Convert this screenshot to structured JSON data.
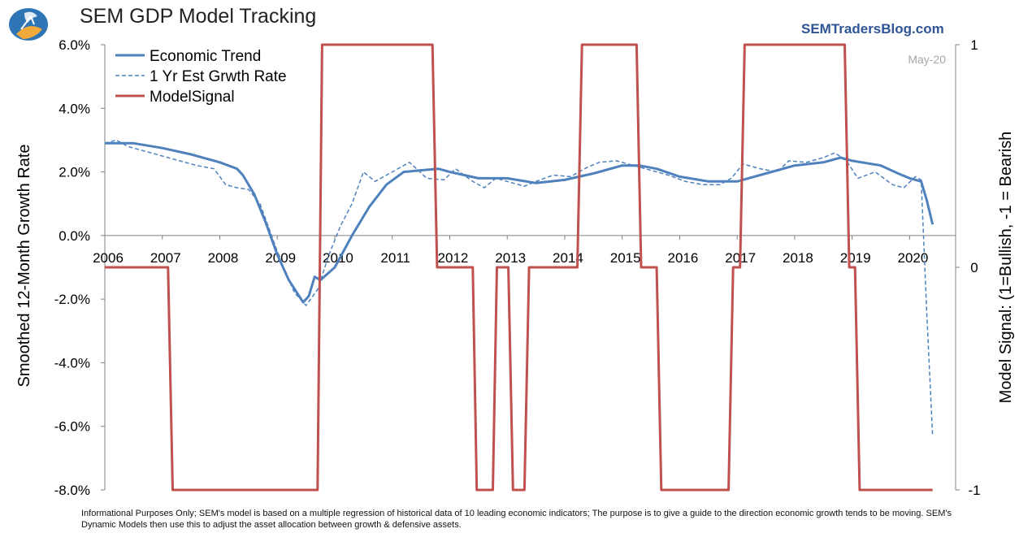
{
  "header": {
    "title": "SEM GDP Model Tracking",
    "brand": "SEMTradersBlog.com",
    "logo_icon": "sem-globe-logo-icon"
  },
  "footnote": "Informational Purposes Only; SEM's model is based on a multiple regression of historical data of 10 leading economic indicators; The purpose is to give a guide to the direction economic growth tends to be moving. SEM's Dynamic Models then use this to adjust the asset allocation between growth & defensive assets.",
  "chart_data": {
    "type": "line",
    "title": "SEM GDP Model Tracking",
    "ylabel": "Smoothed 12-Month Growth Rate",
    "y2label": "Model Signal: (1=Bullish, -1 = Bearish",
    "annotation": "May-20",
    "ylim": [
      -8,
      6
    ],
    "y2lim": [
      -1,
      1
    ],
    "xlim": [
      2006,
      2020.8
    ],
    "yticks": [
      "6.0%",
      "4.0%",
      "2.0%",
      "0.0%",
      "-2.0%",
      "-4.0%",
      "-6.0%",
      "-8.0%"
    ],
    "ytick_values": [
      6,
      4,
      2,
      0,
      -2,
      -4,
      -6,
      -8
    ],
    "y2ticks": [
      "1",
      "0",
      "-1"
    ],
    "y2tick_values": [
      1,
      0,
      -1
    ],
    "xticks": [
      "2006",
      "2007",
      "2008",
      "2009",
      "2010",
      "2011",
      "2012",
      "2013",
      "2014",
      "2015",
      "2016",
      "2017",
      "2018",
      "2019",
      "2020"
    ],
    "xtick_values": [
      2006,
      2007,
      2008,
      2009,
      2010,
      2011,
      2012,
      2013,
      2014,
      2015,
      2016,
      2017,
      2018,
      2019,
      2020
    ],
    "legend_position": "top-left",
    "grid": false,
    "series": [
      {
        "name": "Economic Trend",
        "color": "#4f81bd",
        "style": "solid",
        "axis": "left",
        "x": [
          2006,
          2006.5,
          2007,
          2007.5,
          2008,
          2008.3,
          2008.4,
          2008.6,
          2008.8,
          2009,
          2009.2,
          2009.45,
          2009.55,
          2009.65,
          2009.75,
          2010,
          2010.3,
          2010.6,
          2010.9,
          2011.2,
          2011.5,
          2011.8,
          2012,
          2012.5,
          2013,
          2013.5,
          2014,
          2014.5,
          2015,
          2015.3,
          2015.6,
          2016,
          2016.5,
          2017,
          2017.5,
          2018,
          2018.5,
          2018.8,
          2019,
          2019.5,
          2019.8,
          2020,
          2020.2,
          2020.3,
          2020.4
        ],
        "values": [
          2.9,
          2.9,
          2.75,
          2.55,
          2.3,
          2.1,
          1.9,
          1.3,
          0.4,
          -0.6,
          -1.4,
          -2.1,
          -1.9,
          -1.3,
          -1.4,
          -1.0,
          0.0,
          0.9,
          1.6,
          2.0,
          2.05,
          2.1,
          2.0,
          1.8,
          1.8,
          1.65,
          1.75,
          1.95,
          2.2,
          2.2,
          2.1,
          1.85,
          1.7,
          1.7,
          1.95,
          2.2,
          2.3,
          2.45,
          2.35,
          2.2,
          1.95,
          1.8,
          1.7,
          1.1,
          0.35
        ]
      },
      {
        "name": "1 Yr Est Grwth Rate",
        "color": "#4f81bd",
        "style": "dashed",
        "axis": "left",
        "x": [
          2006,
          2006.2,
          2006.4,
          2006.7,
          2007,
          2007.3,
          2007.6,
          2007.9,
          2008.1,
          2008.3,
          2008.5,
          2008.7,
          2008.9,
          2009.1,
          2009.3,
          2009.5,
          2009.7,
          2009.9,
          2010.1,
          2010.3,
          2010.5,
          2010.7,
          2011,
          2011.3,
          2011.6,
          2011.9,
          2012.1,
          2012.4,
          2012.6,
          2012.8,
          2013,
          2013.3,
          2013.5,
          2013.8,
          2014.1,
          2014.4,
          2014.6,
          2014.9,
          2015.2,
          2015.5,
          2015.8,
          2016.1,
          2016.4,
          2016.7,
          2016.9,
          2017.1,
          2017.4,
          2017.7,
          2017.9,
          2018.2,
          2018.5,
          2018.7,
          2018.9,
          2019.1,
          2019.4,
          2019.7,
          2019.9,
          2020.1,
          2020.2,
          2020.3,
          2020.4
        ],
        "values": [
          2.9,
          3.0,
          2.8,
          2.65,
          2.5,
          2.35,
          2.2,
          2.1,
          1.6,
          1.5,
          1.45,
          1.0,
          0.0,
          -1.0,
          -1.8,
          -2.2,
          -1.7,
          -0.6,
          0.3,
          1.0,
          2.0,
          1.7,
          2.0,
          2.3,
          1.8,
          1.75,
          2.1,
          1.7,
          1.5,
          1.8,
          1.7,
          1.55,
          1.7,
          1.9,
          1.85,
          2.15,
          2.3,
          2.35,
          2.2,
          2.05,
          1.9,
          1.7,
          1.6,
          1.6,
          1.8,
          2.25,
          2.1,
          2.0,
          2.35,
          2.3,
          2.45,
          2.6,
          2.35,
          1.8,
          2.0,
          1.6,
          1.5,
          1.85,
          1.75,
          -2.5,
          -6.3
        ]
      },
      {
        "name": "ModelSignal",
        "color": "#c0504d",
        "style": "solid",
        "axis": "right",
        "x": [
          2006,
          2007.1,
          2007.18,
          2009.7,
          2009.78,
          2011.7,
          2011.78,
          2012.4,
          2012.47,
          2012.75,
          2012.82,
          2013.02,
          2013.1,
          2013.3,
          2013.38,
          2014.22,
          2014.3,
          2015.25,
          2015.33,
          2015.6,
          2015.68,
          2016.85,
          2016.93,
          2017.05,
          2017.13,
          2018.87,
          2018.95,
          2019.05,
          2019.13,
          2020.4
        ],
        "values": [
          0,
          0,
          -1,
          -1,
          1,
          1,
          0,
          0,
          -1,
          -1,
          0,
          0,
          -1,
          -1,
          0,
          0,
          1,
          1,
          0,
          0,
          -1,
          -1,
          0,
          0,
          1,
          1,
          0,
          0,
          -1,
          -1
        ]
      }
    ]
  }
}
